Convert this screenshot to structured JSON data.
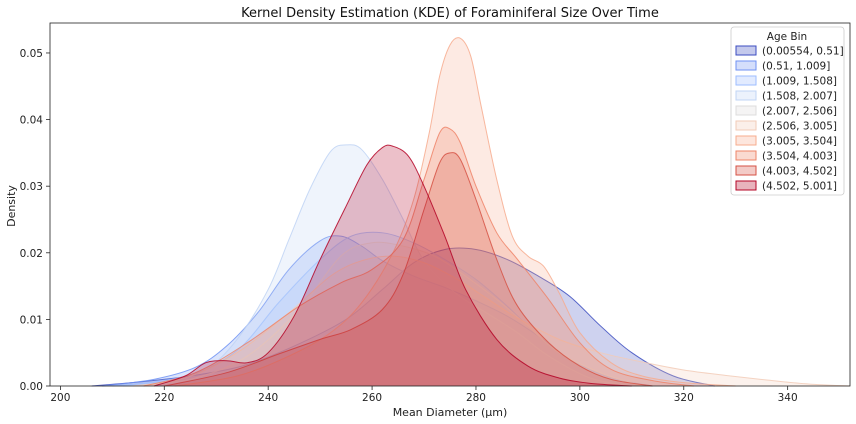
{
  "chart_data": {
    "type": "area",
    "title": "Kernel Density Estimation (KDE) of Foraminiferal Size Over Time",
    "xlabel": "Mean Diameter (µm)",
    "ylabel": "Density",
    "xlim": [
      198,
      352
    ],
    "ylim": [
      0,
      0.0545
    ],
    "xticks": [
      200,
      220,
      240,
      260,
      280,
      300,
      320,
      340
    ],
    "yticks": [
      0.0,
      0.01,
      0.02,
      0.03,
      0.04,
      0.05
    ],
    "ytick_labels": [
      "0.00",
      "0.01",
      "0.02",
      "0.03",
      "0.04",
      "0.05"
    ],
    "grid": false,
    "legend": {
      "title": "Age Bin",
      "position": "top-right"
    },
    "series": [
      {
        "name": "(0.00554, 0.51]",
        "color": "#3b4cc0",
        "points": [
          [
            206,
            0
          ],
          [
            215,
            0.0006
          ],
          [
            225,
            0.0015
          ],
          [
            235,
            0.003
          ],
          [
            245,
            0.006
          ],
          [
            255,
            0.01
          ],
          [
            262,
            0.0145
          ],
          [
            268,
            0.0185
          ],
          [
            274,
            0.0205
          ],
          [
            280,
            0.0205
          ],
          [
            286,
            0.019
          ],
          [
            292,
            0.0165
          ],
          [
            298,
            0.0135
          ],
          [
            304,
            0.009
          ],
          [
            310,
            0.005
          ],
          [
            318,
            0.0015
          ],
          [
            326,
            0
          ]
        ]
      },
      {
        "name": "(0.51, 1.009]",
        "color": "#6f92f3",
        "points": [
          [
            208,
            0
          ],
          [
            218,
            0.001
          ],
          [
            226,
            0.0028
          ],
          [
            232,
            0.006
          ],
          [
            238,
            0.011
          ],
          [
            244,
            0.0175
          ],
          [
            250,
            0.0218
          ],
          [
            254,
            0.0225
          ],
          [
            258,
            0.021
          ],
          [
            262,
            0.0188
          ],
          [
            268,
            0.0165
          ],
          [
            274,
            0.0148
          ],
          [
            280,
            0.0128
          ],
          [
            286,
            0.0105
          ],
          [
            292,
            0.0075
          ],
          [
            298,
            0.004
          ],
          [
            306,
            0.0012
          ],
          [
            314,
            0
          ]
        ]
      },
      {
        "name": "(1.009, 1.508]",
        "color": "#9ebeff",
        "points": [
          [
            210,
            0
          ],
          [
            220,
            0.0008
          ],
          [
            228,
            0.0025
          ],
          [
            235,
            0.006
          ],
          [
            242,
            0.0125
          ],
          [
            250,
            0.019
          ],
          [
            256,
            0.0225
          ],
          [
            262,
            0.023
          ],
          [
            268,
            0.0215
          ],
          [
            274,
            0.019
          ],
          [
            280,
            0.016
          ],
          [
            286,
            0.012
          ],
          [
            292,
            0.0075
          ],
          [
            298,
            0.004
          ],
          [
            306,
            0.0012
          ],
          [
            314,
            0
          ]
        ]
      },
      {
        "name": "(1.508, 2.007]",
        "color": "#c0d4f5",
        "points": [
          [
            212,
            0
          ],
          [
            220,
            0.0005
          ],
          [
            228,
            0.0025
          ],
          [
            234,
            0.007
          ],
          [
            240,
            0.0145
          ],
          [
            244,
            0.022
          ],
          [
            248,
            0.0295
          ],
          [
            252,
            0.0352
          ],
          [
            255,
            0.0362
          ],
          [
            258,
            0.0355
          ],
          [
            262,
            0.031
          ],
          [
            266,
            0.025
          ],
          [
            270,
            0.0188
          ],
          [
            276,
            0.014
          ],
          [
            282,
            0.011
          ],
          [
            288,
            0.008
          ],
          [
            294,
            0.0045
          ],
          [
            302,
            0.0012
          ],
          [
            310,
            0
          ]
        ]
      },
      {
        "name": "(2.007, 2.506]",
        "color": "#dddcdc",
        "points": [
          [
            216,
            0
          ],
          [
            226,
            0.0012
          ],
          [
            236,
            0.0045
          ],
          [
            246,
            0.0115
          ],
          [
            254,
            0.0195
          ],
          [
            260,
            0.0215
          ],
          [
            266,
            0.021
          ],
          [
            272,
            0.0195
          ],
          [
            278,
            0.0165
          ],
          [
            284,
            0.013
          ],
          [
            290,
            0.009
          ],
          [
            296,
            0.005
          ],
          [
            304,
            0.002
          ],
          [
            312,
            0
          ]
        ]
      },
      {
        "name": "(2.506, 3.005]",
        "color": "#f2cbb7",
        "points": [
          [
            214,
            0
          ],
          [
            224,
            0.0012
          ],
          [
            234,
            0.005
          ],
          [
            244,
            0.011
          ],
          [
            252,
            0.0165
          ],
          [
            258,
            0.0188
          ],
          [
            264,
            0.0195
          ],
          [
            270,
            0.0185
          ],
          [
            276,
            0.0162
          ],
          [
            282,
            0.0132
          ],
          [
            288,
            0.0102
          ],
          [
            296,
            0.007
          ],
          [
            304,
            0.005
          ],
          [
            312,
            0.0036
          ],
          [
            320,
            0.0024
          ],
          [
            328,
            0.0016
          ],
          [
            336,
            0.0009
          ],
          [
            344,
            0.0003
          ],
          [
            352,
            0
          ]
        ]
      },
      {
        "name": "(3.005, 3.504]",
        "color": "#f7ac8e",
        "points": [
          [
            222,
            0
          ],
          [
            234,
            0.0015
          ],
          [
            244,
            0.0045
          ],
          [
            252,
            0.008
          ],
          [
            258,
            0.0125
          ],
          [
            264,
            0.02
          ],
          [
            268,
            0.028
          ],
          [
            271,
            0.038
          ],
          [
            273,
            0.0465
          ],
          [
            275,
            0.0512
          ],
          [
            277,
            0.0522
          ],
          [
            279,
            0.0495
          ],
          [
            281,
            0.042
          ],
          [
            284,
            0.031
          ],
          [
            287,
            0.0225
          ],
          [
            290,
            0.0195
          ],
          [
            293,
            0.018
          ],
          [
            296,
            0.014
          ],
          [
            300,
            0.008
          ],
          [
            306,
            0.0035
          ],
          [
            312,
            0.0015
          ],
          [
            320,
            0.0005
          ],
          [
            330,
            0
          ]
        ]
      },
      {
        "name": "(3.504, 4.003]",
        "color": "#ee8468",
        "points": [
          [
            216,
            0
          ],
          [
            226,
            0.002
          ],
          [
            236,
            0.0065
          ],
          [
            246,
            0.012
          ],
          [
            254,
            0.0155
          ],
          [
            260,
            0.0175
          ],
          [
            266,
            0.022
          ],
          [
            270,
            0.031
          ],
          [
            273,
            0.038
          ],
          [
            275,
            0.0386
          ],
          [
            277,
            0.0365
          ],
          [
            280,
            0.03
          ],
          [
            284,
            0.023
          ],
          [
            288,
            0.019
          ],
          [
            294,
            0.013
          ],
          [
            300,
            0.0065
          ],
          [
            306,
            0.0025
          ],
          [
            314,
            0.0008
          ],
          [
            322,
            0
          ]
        ]
      },
      {
        "name": "(4.003, 4.502]",
        "color": "#d65244",
        "points": [
          [
            220,
            0
          ],
          [
            232,
            0.002
          ],
          [
            242,
            0.0048
          ],
          [
            250,
            0.007
          ],
          [
            256,
            0.0085
          ],
          [
            262,
            0.0115
          ],
          [
            266,
            0.0168
          ],
          [
            270,
            0.0265
          ],
          [
            273,
            0.0335
          ],
          [
            275,
            0.035
          ],
          [
            277,
            0.034
          ],
          [
            280,
            0.028
          ],
          [
            284,
            0.019
          ],
          [
            288,
            0.012
          ],
          [
            294,
            0.0065
          ],
          [
            300,
            0.003
          ],
          [
            306,
            0.001
          ],
          [
            314,
            0
          ]
        ]
      },
      {
        "name": "(4.502, 5.001]",
        "color": "#b40426",
        "points": [
          [
            218,
            0
          ],
          [
            224,
            0.0015
          ],
          [
            228,
            0.0035
          ],
          [
            232,
            0.0038
          ],
          [
            236,
            0.0035
          ],
          [
            240,
            0.005
          ],
          [
            245,
            0.0105
          ],
          [
            250,
            0.019
          ],
          [
            255,
            0.027
          ],
          [
            259,
            0.0332
          ],
          [
            262,
            0.0358
          ],
          [
            264,
            0.036
          ],
          [
            267,
            0.0345
          ],
          [
            270,
            0.03
          ],
          [
            274,
            0.0225
          ],
          [
            278,
            0.0145
          ],
          [
            284,
            0.007
          ],
          [
            290,
            0.003
          ],
          [
            296,
            0.0012
          ],
          [
            302,
            0.0004
          ],
          [
            310,
            0
          ]
        ]
      }
    ]
  }
}
